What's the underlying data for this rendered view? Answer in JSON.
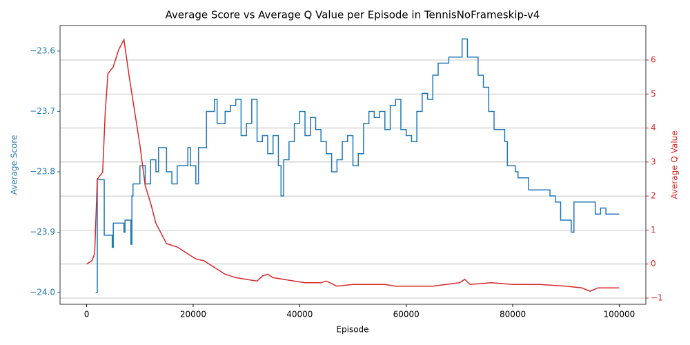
{
  "chart_data": {
    "type": "line",
    "title": "Average Score vs Average Q Value per Episode in TennisNoFrameskip-v4",
    "xlabel": "Episode",
    "ylabel": "Average Score",
    "y2label": "Average Q Value",
    "grid_axis": "y2",
    "xlim": [
      -5000,
      105000
    ],
    "xticks": [
      0,
      20000,
      40000,
      60000,
      80000,
      100000
    ],
    "ylim": [
      -24.0194,
      -23.5577
    ],
    "yticks": [
      {
        "value": -24.0,
        "label": "−24.0"
      },
      {
        "value": -23.9,
        "label": "−23.9"
      },
      {
        "value": -23.8,
        "label": "−23.8"
      },
      {
        "value": -23.7,
        "label": "−23.7"
      },
      {
        "value": -23.6,
        "label": "−23.6"
      }
    ],
    "y2lim": [
      -1.183,
      7.014
    ],
    "y2ticks": [
      {
        "value": -1,
        "label": "−1"
      },
      0,
      1,
      2,
      3,
      4,
      5,
      6
    ],
    "series": [
      {
        "name": "Average Score",
        "color": "#1f77b4",
        "axis": "y",
        "drawstyle": "steps-post",
        "x": [
          1700,
          2000,
          3300,
          4800,
          5000,
          7000,
          7200,
          8300,
          8500,
          8700,
          10000,
          11000,
          12000,
          13000,
          13500,
          15000,
          16000,
          17000,
          19000,
          19500,
          20500,
          21000,
          22500,
          24000,
          24500,
          26000,
          27000,
          28000,
          29000,
          30000,
          31000,
          32000,
          33000,
          34000,
          35000,
          36000,
          36500,
          37000,
          38000,
          39000,
          40000,
          41000,
          42000,
          43000,
          44000,
          45000,
          46000,
          47000,
          48000,
          49000,
          50000,
          51000,
          52000,
          53000,
          54000,
          55000,
          56000,
          57000,
          58000,
          59000,
          60000,
          61000,
          62000,
          63000,
          64000,
          65000,
          66000,
          67000,
          68000,
          70000,
          70500,
          71500,
          73000,
          73500,
          74500,
          75500,
          76500,
          78500,
          79000,
          80500,
          81000,
          83000,
          87000,
          88000,
          89000,
          91000,
          91500,
          95500,
          96500,
          97500,
          100000
        ],
        "values": [
          -24.0,
          -23.813,
          -23.905,
          -23.925,
          -23.885,
          -23.9,
          -23.88,
          -23.92,
          -23.84,
          -23.82,
          -23.79,
          -23.82,
          -23.78,
          -23.8,
          -23.76,
          -23.8,
          -23.82,
          -23.79,
          -23.76,
          -23.79,
          -23.82,
          -23.76,
          -23.7,
          -23.68,
          -23.72,
          -23.7,
          -23.69,
          -23.68,
          -23.74,
          -23.72,
          -23.68,
          -23.75,
          -23.74,
          -23.77,
          -23.74,
          -23.79,
          -23.84,
          -23.78,
          -23.75,
          -23.72,
          -23.7,
          -23.74,
          -23.71,
          -23.73,
          -23.75,
          -23.77,
          -23.8,
          -23.78,
          -23.75,
          -23.74,
          -23.79,
          -23.77,
          -23.72,
          -23.7,
          -23.71,
          -23.7,
          -23.73,
          -23.69,
          -23.68,
          -23.73,
          -23.74,
          -23.75,
          -23.7,
          -23.67,
          -23.68,
          -23.64,
          -23.62,
          -23.62,
          -23.61,
          -23.61,
          -23.58,
          -23.61,
          -23.61,
          -23.64,
          -23.66,
          -23.7,
          -23.73,
          -23.75,
          -23.79,
          -23.8,
          -23.81,
          -23.83,
          -23.84,
          -23.85,
          -23.88,
          -23.9,
          -23.85,
          -23.87,
          -23.86,
          -23.87,
          -23.87
        ]
      },
      {
        "name": "Average Q Value",
        "color": "#d62728",
        "axis": "y2",
        "x": [
          0,
          1000,
          1500,
          2000,
          3000,
          3500,
          4000,
          5000,
          6000,
          7000,
          8000,
          9000,
          10000,
          11000,
          12000,
          13000,
          14000,
          15000,
          17000,
          19000,
          20500,
          22000,
          24000,
          26000,
          28000,
          30000,
          32000,
          33000,
          34000,
          35000,
          37000,
          39000,
          41000,
          44000,
          45000,
          47000,
          50000,
          53000,
          56000,
          58000,
          60000,
          65000,
          70000,
          71000,
          72000,
          76000,
          80000,
          85000,
          90000,
          93000,
          94500,
          96000,
          98000,
          100000
        ],
        "values": [
          0,
          0.1,
          0.3,
          2.5,
          2.7,
          4.5,
          5.6,
          5.8,
          6.3,
          6.6,
          5.5,
          4.5,
          3.5,
          2.3,
          1.8,
          1.2,
          0.9,
          0.6,
          0.5,
          0.3,
          0.15,
          0.1,
          -0.1,
          -0.3,
          -0.4,
          -0.45,
          -0.5,
          -0.35,
          -0.3,
          -0.4,
          -0.45,
          -0.5,
          -0.55,
          -0.55,
          -0.5,
          -0.65,
          -0.6,
          -0.6,
          -0.6,
          -0.65,
          -0.65,
          -0.65,
          -0.55,
          -0.45,
          -0.6,
          -0.55,
          -0.6,
          -0.6,
          -0.65,
          -0.7,
          -0.8,
          -0.7,
          -0.7,
          -0.7
        ]
      }
    ]
  }
}
